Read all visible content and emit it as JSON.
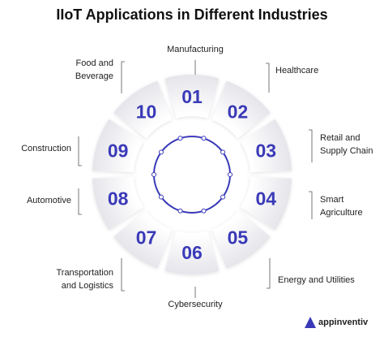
{
  "title": "IIoT Applications in Different Industries",
  "segments": [
    {
      "number": "01",
      "label": [
        "Manufacturing"
      ]
    },
    {
      "number": "02",
      "label": [
        "Healthcare"
      ]
    },
    {
      "number": "03",
      "label": [
        "Retail and",
        "Supply Chain"
      ]
    },
    {
      "number": "04",
      "label": [
        "Smart",
        "Agriculture"
      ]
    },
    {
      "number": "05",
      "label": [
        "Energy and Utilities"
      ]
    },
    {
      "number": "06",
      "label": [
        "Cybersecurity"
      ]
    },
    {
      "number": "07",
      "label": [
        "Transportation",
        "and Logistics"
      ]
    },
    {
      "number": "08",
      "label": [
        "Automotive"
      ]
    },
    {
      "number": "09",
      "label": [
        "Construction"
      ]
    },
    {
      "number": "10",
      "label": [
        "Food and",
        "Beverage"
      ]
    }
  ],
  "logo": "appinventiv"
}
